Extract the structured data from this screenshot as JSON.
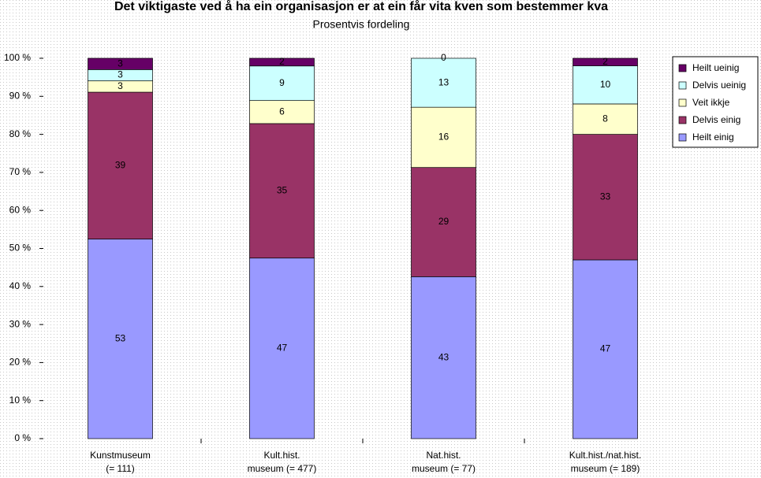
{
  "chart_data": {
    "type": "stacked_bar_percent",
    "title": "Det viktigaste ved å ha ein organisasjon er at ein får vita kven som bestemmer kva",
    "subtitle": "Prosentvis fordeling",
    "categories": [
      "Kunstmuseum\n(= 111)",
      "Kult.hist.\nmuseum (= 477)",
      "Nat.hist.\nmuseum (= 77)",
      "Kult.hist./nat.hist.\nmuseum (= 189)"
    ],
    "series": [
      {
        "name": "Heilt einig",
        "color": "#9999ff",
        "values": [
          53,
          47,
          43,
          47
        ]
      },
      {
        "name": "Delvis einig",
        "color": "#993366",
        "values": [
          39,
          35,
          29,
          33
        ]
      },
      {
        "name": "Veit ikkje",
        "color": "#ffffcc",
        "values": [
          3,
          6,
          16,
          8
        ]
      },
      {
        "name": "Delvis ueinig",
        "color": "#ccffff",
        "values": [
          3,
          9,
          13,
          10
        ]
      },
      {
        "name": "Heilt ueinig",
        "color": "#660066",
        "values": [
          3,
          2,
          0,
          2
        ]
      }
    ],
    "ylim": [
      0,
      100
    ],
    "yticks": [
      {
        "value": 0,
        "label": "0 %"
      },
      {
        "value": 10,
        "label": "10 %"
      },
      {
        "value": 20,
        "label": "20 %"
      },
      {
        "value": 30,
        "label": "30 %"
      },
      {
        "value": 40,
        "label": "40 %"
      },
      {
        "value": 50,
        "label": "50 %"
      },
      {
        "value": 60,
        "label": "60 %"
      },
      {
        "value": 70,
        "label": "70 %"
      },
      {
        "value": 80,
        "label": "80 %"
      },
      {
        "value": 90,
        "label": "90 %"
      },
      {
        "value": 100,
        "label": "100 %"
      }
    ],
    "legend": "right"
  }
}
